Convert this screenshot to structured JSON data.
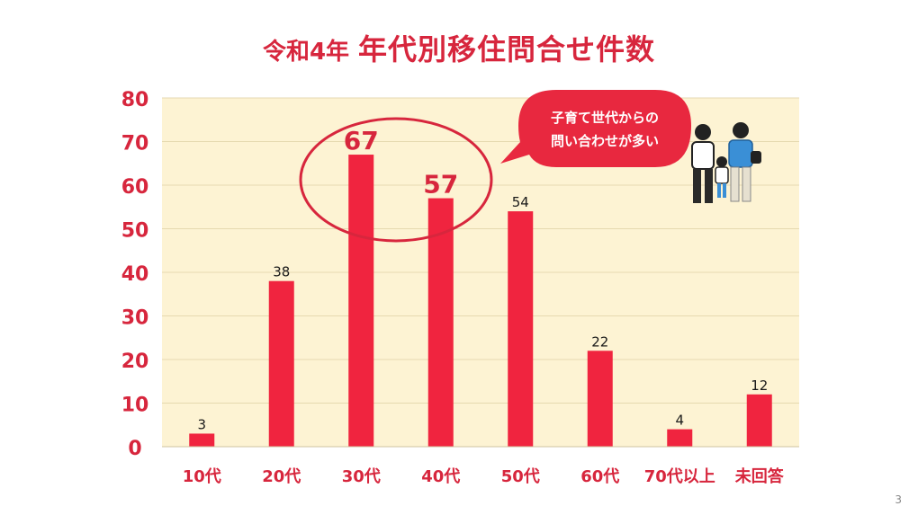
{
  "title": {
    "prefix": "令和4年",
    "main": "年代別移住問合せ件数"
  },
  "callout": {
    "line1": "子育て世代からの",
    "line2": "問い合わせが多い"
  },
  "page_number": "3",
  "colors": {
    "bar": "#f0243f",
    "accent": "#d7263d",
    "plot_bg": "#fdf3d3",
    "grid": "#e6d9b0"
  },
  "chart_data": {
    "type": "bar",
    "title": "年代別移住問合せ件数",
    "categories": [
      "10代",
      "20代",
      "30代",
      "40代",
      "50代",
      "60代",
      "70代以上",
      "未回答"
    ],
    "values": [
      3,
      38,
      67,
      57,
      54,
      22,
      4,
      12
    ],
    "ylim": [
      0,
      80
    ],
    "yticks": [
      0,
      10,
      20,
      30,
      40,
      50,
      60,
      70,
      80
    ],
    "grid": true,
    "highlighted_categories": [
      "30代",
      "40代"
    ]
  }
}
